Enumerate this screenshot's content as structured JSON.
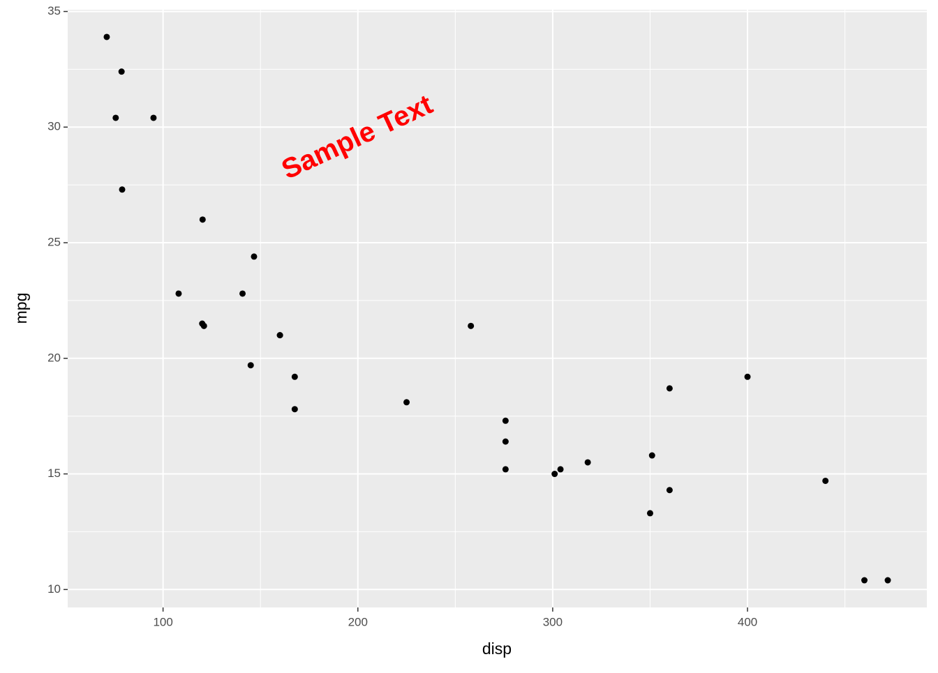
{
  "chart_data": {
    "type": "scatter",
    "x_label": "disp",
    "y_label": "mpg",
    "x": [
      160,
      160,
      108,
      258,
      360,
      225,
      360,
      146.7,
      140.8,
      167.6,
      167.6,
      275.8,
      275.8,
      275.8,
      472,
      460,
      440,
      78.7,
      75.7,
      71.1,
      120.1,
      318,
      304,
      350,
      400,
      79,
      120.3,
      95.1,
      351,
      145,
      301,
      121
    ],
    "values": [
      21.0,
      21.0,
      22.8,
      21.4,
      18.7,
      18.1,
      14.3,
      24.4,
      22.8,
      19.2,
      17.8,
      16.4,
      17.3,
      15.2,
      10.4,
      10.4,
      14.7,
      32.4,
      30.4,
      33.9,
      21.5,
      15.5,
      15.2,
      13.3,
      19.2,
      27.3,
      26.0,
      30.4,
      15.8,
      19.7,
      15.0,
      21.4
    ],
    "color": "#000000",
    "xlim": [
      51.055,
      492.045
    ],
    "ylim": [
      9.225,
      35.075
    ],
    "xticks": [
      100,
      200,
      300,
      400
    ],
    "yticks": [
      10,
      15,
      20,
      25,
      30,
      35
    ],
    "xminor": [
      150,
      250,
      350,
      450
    ],
    "yminor": [
      12.5,
      17.5,
      22.5,
      27.5,
      32.5
    ],
    "grid": true,
    "annotation": {
      "text": "Sample Text",
      "x": 200,
      "y": 29.5,
      "angle": 25,
      "color": "#ff0000"
    }
  }
}
